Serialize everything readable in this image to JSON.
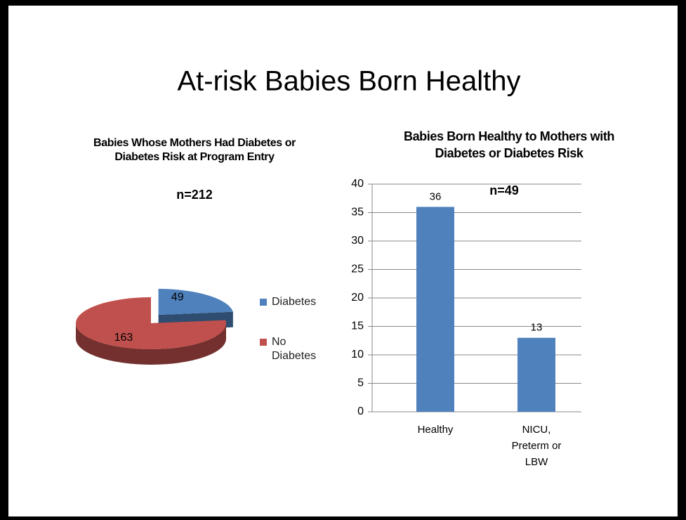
{
  "title": "At-risk Babies Born Healthy",
  "chart_data": [
    {
      "type": "pie",
      "title": "Babies Whose Mothers Had Diabetes or Diabetes Risk at Program Entry",
      "annotation": "n=212",
      "categories": [
        "Diabetes",
        "No Diabetes"
      ],
      "values": [
        49,
        163
      ],
      "colors": [
        "#4f81bd",
        "#c0504d"
      ]
    },
    {
      "type": "bar",
      "title": "Babies Born Healthy to Mothers with Diabetes or Diabetes Risk",
      "annotation": "n=49",
      "categories": [
        "Healthy",
        "NICU, Preterm or LBW"
      ],
      "values": [
        36,
        13
      ],
      "color": "#4f81bd",
      "ylim": [
        0,
        40
      ],
      "yticks": [
        0,
        5,
        10,
        15,
        20,
        25,
        30,
        35,
        40
      ],
      "grid": true
    }
  ]
}
